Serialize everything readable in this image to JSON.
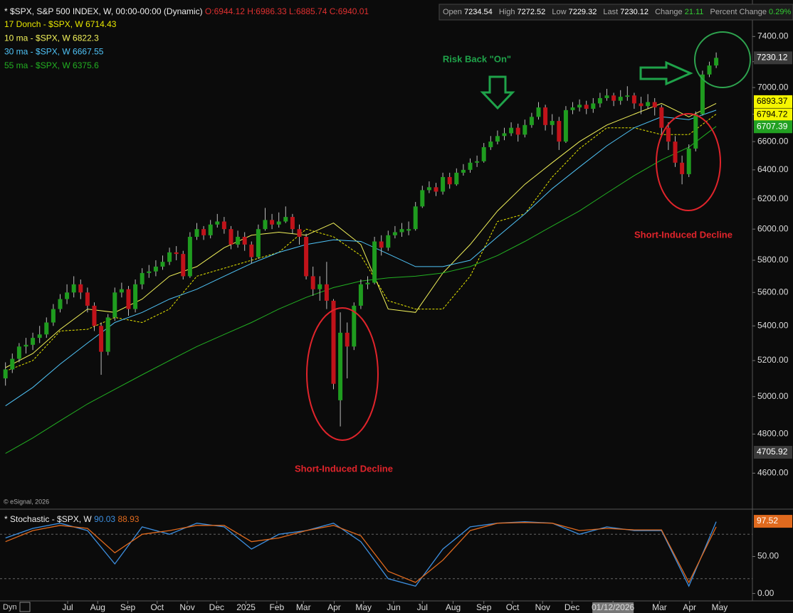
{
  "header": {
    "open_label": "Open",
    "open": 7234.54,
    "high_label": "High",
    "high": 7272.52,
    "low_label": "Low",
    "low": 7229.32,
    "last_label": "Last",
    "last": 7230.12,
    "change_label": "Change",
    "change": 21.11,
    "pct_label": "Percent Change",
    "pct": "0.29%"
  },
  "footer": {
    "dyn": "Dyn"
  },
  "chart_data": [
    {
      "type": "candlestick",
      "title": "* $SPX, S&P 500 INDEX, W, 00:00-00:00 (Dynamic)",
      "ohlc_readout": "O:6944.12 H:6986.33 L:6885.74 C:6940.01",
      "log_scale": true,
      "up_color": "#1f9c1f",
      "down_color": "#c0131a",
      "open": [
        5100,
        5150,
        5210,
        5280,
        5290,
        5330,
        5350,
        5420,
        5500,
        5560,
        5600,
        5650,
        5600,
        5520,
        5400,
        5250,
        5450,
        5600,
        5620,
        5500,
        5650,
        5720,
        5730,
        5760,
        5790,
        5850,
        5840,
        5700,
        5950,
        6000,
        5960,
        6030,
        6050,
        6000,
        5900,
        5950,
        5900,
        5820,
        6000,
        6060,
        6030,
        6050,
        6080,
        6000,
        5950,
        5700,
        5620,
        5650,
        5550,
        4980,
        5360,
        5280,
        5520,
        5650,
        5660,
        5920,
        5880,
        5960,
        5980,
        5990,
        6000,
        6150,
        6260,
        6280,
        6250,
        6350,
        6300,
        6380,
        6400,
        6450,
        6460,
        6560,
        6600,
        6640,
        6660,
        6700,
        6650,
        6720,
        6780,
        6850,
        6720,
        6750,
        6600,
        6830,
        6850,
        6870,
        6840,
        6880,
        6920,
        6940,
        6900,
        6930,
        6940,
        6880,
        6860,
        6890,
        6850,
        6700,
        6600,
        6450,
        6370,
        6550,
        6800,
        7100,
        7170
      ],
      "high": [
        5190,
        5240,
        5300,
        5330,
        5360,
        5400,
        5450,
        5530,
        5590,
        5650,
        5700,
        5680,
        5630,
        5540,
        5420,
        5470,
        5630,
        5660,
        5640,
        5680,
        5750,
        5770,
        5800,
        5830,
        5880,
        5890,
        5860,
        5980,
        6040,
        6020,
        6060,
        6100,
        6080,
        6020,
        5990,
        5980,
        5920,
        6030,
        6140,
        6100,
        6110,
        6150,
        6100,
        6030,
        5970,
        5760,
        5700,
        5790,
        5560,
        5480,
        5420,
        5540,
        5680,
        5700,
        5950,
        5960,
        5990,
        6020,
        6040,
        6050,
        6180,
        6290,
        6320,
        6310,
        6380,
        6380,
        6410,
        6440,
        6480,
        6500,
        6590,
        6640,
        6680,
        6700,
        6740,
        6730,
        6760,
        6810,
        6890,
        6870,
        6800,
        6780,
        6860,
        6890,
        6910,
        6900,
        6920,
        6960,
        6990,
        6960,
        6980,
        7010,
        6960,
        6930,
        6950,
        6920,
        6870,
        6740,
        6640,
        6500,
        6580,
        6820,
        7130,
        7200,
        7272.52
      ],
      "low": [
        5060,
        5130,
        5190,
        5240,
        5260,
        5300,
        5330,
        5400,
        5480,
        5530,
        5570,
        5560,
        5480,
        5370,
        5120,
        5230,
        5430,
        5570,
        5460,
        5480,
        5620,
        5690,
        5700,
        5740,
        5770,
        5800,
        5680,
        5690,
        5930,
        5930,
        5940,
        6010,
        5970,
        5870,
        5880,
        5860,
        5780,
        5810,
        5990,
        6000,
        6010,
        6040,
        5970,
        5900,
        5680,
        5580,
        5550,
        5500,
        5040,
        4840,
        5100,
        5260,
        5500,
        5620,
        5650,
        5830,
        5860,
        5940,
        5950,
        5960,
        5990,
        6140,
        6240,
        6220,
        6230,
        6270,
        6290,
        6360,
        6380,
        6420,
        6450,
        6540,
        6580,
        6610,
        6640,
        6600,
        6630,
        6700,
        6760,
        6680,
        6650,
        6540,
        6590,
        6800,
        6820,
        6800,
        6810,
        6850,
        6900,
        6860,
        6870,
        6900,
        6840,
        6800,
        6840,
        6790,
        6650,
        6540,
        6420,
        6300,
        6350,
        6530,
        6790,
        7080,
        7150
      ],
      "close": [
        5150,
        5210,
        5280,
        5290,
        5330,
        5350,
        5420,
        5500,
        5560,
        5600,
        5650,
        5600,
        5520,
        5400,
        5250,
        5450,
        5600,
        5620,
        5500,
        5650,
        5720,
        5730,
        5760,
        5790,
        5850,
        5840,
        5700,
        5950,
        6000,
        5960,
        6030,
        6050,
        6000,
        5900,
        5950,
        5900,
        5820,
        6000,
        6060,
        6030,
        6050,
        6080,
        6000,
        5950,
        5700,
        5620,
        5650,
        5550,
        5070,
        5360,
        5280,
        5520,
        5650,
        5660,
        5920,
        5880,
        5960,
        5980,
        6000,
        6000,
        6150,
        6260,
        6280,
        6250,
        6350,
        6300,
        6380,
        6400,
        6450,
        6460,
        6560,
        6600,
        6640,
        6660,
        6700,
        6650,
        6720,
        6780,
        6850,
        6720,
        6750,
        6600,
        6830,
        6850,
        6870,
        6840,
        6880,
        6920,
        6940,
        6900,
        6930,
        6940,
        6880,
        6860,
        6890,
        6850,
        6700,
        6600,
        6450,
        6370,
        6550,
        6800,
        7100,
        7170,
        7230.12
      ],
      "xlim": [
        -0.8,
        109.3
      ],
      "ylim": [
        4430,
        7700
      ],
      "yticks": [
        {
          "value": 4600,
          "label": "4600.00"
        },
        {
          "value": 4800,
          "label": "4800.00"
        },
        {
          "value": 5000,
          "label": "5000.00"
        },
        {
          "value": 5200,
          "label": "5200.00"
        },
        {
          "value": 5400,
          "label": "5400.00"
        },
        {
          "value": 5600,
          "label": "5600.00"
        },
        {
          "value": 5800,
          "label": "5800.00"
        },
        {
          "value": 6000,
          "label": "6000.00"
        },
        {
          "value": 6200,
          "label": "6200.00"
        },
        {
          "value": 6400,
          "label": "6400.00"
        },
        {
          "value": 6600,
          "label": "6600.00"
        },
        {
          "value": 6800,
          "label": "6800.00"
        },
        {
          "value": 7000,
          "label": "7000.00"
        },
        {
          "value": 7200,
          "label": "7200.00"
        },
        {
          "value": 7400,
          "label": "7400.00"
        }
      ],
      "xticks": [
        {
          "value": 9.1,
          "label": "Jul"
        },
        {
          "value": 13.5,
          "label": "Aug"
        },
        {
          "value": 17.9,
          "label": "Sep"
        },
        {
          "value": 22.2,
          "label": "Oct"
        },
        {
          "value": 26.6,
          "label": "Nov"
        },
        {
          "value": 30.9,
          "label": "Dec"
        },
        {
          "value": 35.2,
          "label": "2025"
        },
        {
          "value": 39.7,
          "label": "Feb"
        },
        {
          "value": 43.6,
          "label": "Mar"
        },
        {
          "value": 48.1,
          "label": "Apr"
        },
        {
          "value": 52.4,
          "label": "May"
        },
        {
          "value": 56.8,
          "label": "Jun"
        },
        {
          "value": 61.0,
          "label": "Jul"
        },
        {
          "value": 65.5,
          "label": "Aug"
        },
        {
          "value": 70.0,
          "label": "Sep"
        },
        {
          "value": 74.2,
          "label": "Oct"
        },
        {
          "value": 78.6,
          "label": "Nov"
        },
        {
          "value": 82.9,
          "label": "Dec"
        },
        {
          "value": 88.9,
          "label": "01/12/2026"
        },
        {
          "value": 95.7,
          "label": "Mar"
        },
        {
          "value": 100.1,
          "label": "Apr"
        },
        {
          "value": 104.5,
          "label": "May"
        }
      ],
      "line_x": [
        0,
        4,
        8,
        12,
        16,
        20,
        24,
        28,
        32,
        36,
        40,
        44,
        48,
        52,
        56,
        60,
        64,
        68,
        72,
        76,
        80,
        84,
        88,
        92,
        96,
        100,
        104
      ],
      "series": [
        {
          "name": "17 Donch - $SPX, W",
          "readout": 6714.43,
          "color": "#e8e800",
          "dashed": true,
          "values": [
            5140,
            5200,
            5370,
            5380,
            5450,
            5420,
            5500,
            5700,
            5750,
            5800,
            5850,
            6000,
            5950,
            5830,
            5550,
            5500,
            5500,
            5700,
            6050,
            6100,
            6350,
            6550,
            6700,
            6700,
            6650,
            6650,
            6800
          ]
        },
        {
          "name": "10 ma - $SPX, W",
          "readout": 6822.3,
          "color": "#f2f25a",
          "values": [
            5160,
            5240,
            5380,
            5500,
            5480,
            5560,
            5700,
            5760,
            5880,
            5960,
            5980,
            5960,
            6040,
            5900,
            5500,
            5480,
            5720,
            5900,
            6120,
            6300,
            6450,
            6600,
            6720,
            6800,
            6880,
            6780,
            6880
          ]
        },
        {
          "name": "30 ma - $SPX, W",
          "readout": 6667.55,
          "color": "#4fc3f7",
          "values": [
            4950,
            5050,
            5180,
            5300,
            5420,
            5480,
            5560,
            5620,
            5700,
            5780,
            5850,
            5900,
            5930,
            5920,
            5840,
            5760,
            5760,
            5800,
            5950,
            6100,
            6270,
            6420,
            6570,
            6700,
            6780,
            6760,
            6830
          ]
        },
        {
          "name": "55 ma - $SPX, W",
          "readout": 6375.6,
          "color": "#22b022",
          "values": [
            4700,
            4780,
            4870,
            4960,
            5040,
            5120,
            5200,
            5280,
            5350,
            5420,
            5500,
            5570,
            5630,
            5670,
            5690,
            5700,
            5720,
            5760,
            5830,
            5920,
            6020,
            6120,
            6240,
            6360,
            6470,
            6560,
            6710
          ]
        }
      ],
      "price_markers": [
        {
          "value": 7230.12,
          "color": "#3a3a3a",
          "text_color": "#ffffff"
        },
        {
          "value": 6893.37,
          "color": "#f5f500",
          "text_color": "#000000"
        },
        {
          "value": 6794.72,
          "color": "#f5f500",
          "text_color": "#000000"
        },
        {
          "value": 6707.39,
          "color": "#22a022",
          "text_color": "#ffffff"
        },
        {
          "value": 4705.92,
          "color": "#3a3a3a",
          "text_color": "#ffffff"
        }
      ],
      "annotations": [
        "Risk Back \"On\"",
        "Short-Induced Decline",
        "Short-Induced Decline"
      ],
      "copyright": "© eSignal, 2026"
    },
    {
      "type": "line",
      "title": "* Stochastic - $SPX, W",
      "ylim": [
        -10,
        112
      ],
      "xlim": [
        -0.8,
        109.3
      ],
      "yticks": [
        {
          "value": 0,
          "label": "0.00"
        },
        {
          "value": 50,
          "label": "50.00"
        }
      ],
      "hlines": [
        80,
        20
      ],
      "x": [
        0,
        4,
        8,
        12,
        16,
        20,
        24,
        28,
        32,
        36,
        40,
        44,
        48,
        52,
        56,
        60,
        64,
        68,
        72,
        76,
        80,
        84,
        88,
        92,
        96,
        100,
        104
      ],
      "series": [
        {
          "readout": 90.03,
          "color": "#3d8fe0",
          "values": [
            75,
            88,
            95,
            85,
            40,
            90,
            80,
            95,
            90,
            60,
            80,
            85,
            95,
            70,
            20,
            10,
            60,
            90,
            95,
            97,
            95,
            80,
            90,
            85,
            85,
            10,
            97
          ]
        },
        {
          "readout": 88.93,
          "color": "#e06a1e",
          "values": [
            70,
            85,
            92,
            88,
            55,
            80,
            85,
            92,
            92,
            70,
            75,
            85,
            92,
            78,
            30,
            15,
            45,
            85,
            95,
            96,
            95,
            85,
            88,
            86,
            86,
            15,
            90
          ]
        }
      ],
      "marker": {
        "value": 97.52,
        "color": "#e06a1e"
      }
    }
  ]
}
